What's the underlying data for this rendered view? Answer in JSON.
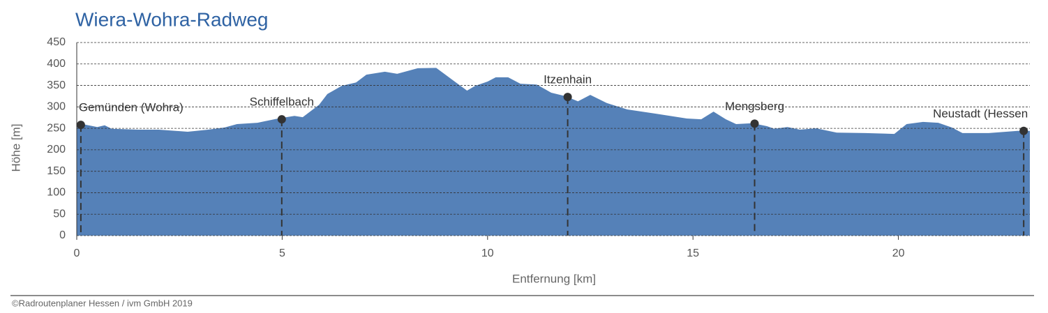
{
  "chart_data": {
    "type": "area",
    "title": "Wiera-Wohra-Radweg",
    "x_label": "Entfernung [km]",
    "y_label": "Höhe [m]",
    "source": "©Radroutenplaner Hessen / ivm GmbH 2019",
    "color": "#5581b8",
    "grid": true,
    "x": [
      0,
      0.14,
      0.5,
      0.68,
      0.85,
      1.5,
      2.0,
      2.7,
      3.2,
      3.6,
      3.9,
      4.4,
      4.9,
      5.3,
      5.5,
      5.9,
      6.1,
      6.45,
      6.8,
      7.05,
      7.5,
      7.8,
      8.3,
      8.75,
      9.2,
      9.5,
      9.7,
      10.0,
      10.2,
      10.5,
      10.8,
      11.2,
      11.55,
      11.9,
      12.2,
      12.5,
      12.9,
      13.4,
      14.1,
      14.85,
      15.2,
      15.5,
      15.8,
      16.05,
      16.45,
      16.8,
      16.98,
      17.3,
      17.6,
      18.0,
      18.5,
      19.2,
      19.9,
      20.2,
      20.6,
      20.97,
      21.3,
      21.56,
      22.2,
      22.9,
      23.2
    ],
    "values": [
      252,
      260,
      253,
      257,
      249,
      247,
      247,
      242,
      247,
      252,
      260,
      263,
      273,
      279,
      276,
      305,
      330,
      349,
      357,
      375,
      382,
      377,
      390,
      391,
      359,
      338,
      349,
      359,
      369,
      369,
      354,
      352,
      333,
      325,
      313,
      328,
      309,
      294,
      284,
      273,
      271,
      289,
      271,
      260,
      262,
      255,
      249,
      253,
      247,
      250,
      240,
      239,
      237,
      260,
      265,
      263,
      252,
      239,
      239,
      244,
      244
    ],
    "markers": [
      {
        "label": "Gemünden (Wohra)",
        "x": 0.1,
        "y": 258
      },
      {
        "label": "Schiffelbach",
        "x": 4.99,
        "y": 271
      },
      {
        "label": "Itzenhain",
        "x": 11.95,
        "y": 323
      },
      {
        "label": "Mengsberg",
        "x": 16.5,
        "y": 261
      },
      {
        "label": "Neustadt (Hessen",
        "x": 23.05,
        "y": 244
      }
    ],
    "xlim": [
      0,
      23.2
    ],
    "xticks": [
      0,
      5,
      10,
      15,
      20
    ],
    "ylim": [
      0,
      450
    ],
    "yticks": [
      0,
      50,
      100,
      150,
      200,
      250,
      300,
      350,
      400,
      450
    ]
  }
}
